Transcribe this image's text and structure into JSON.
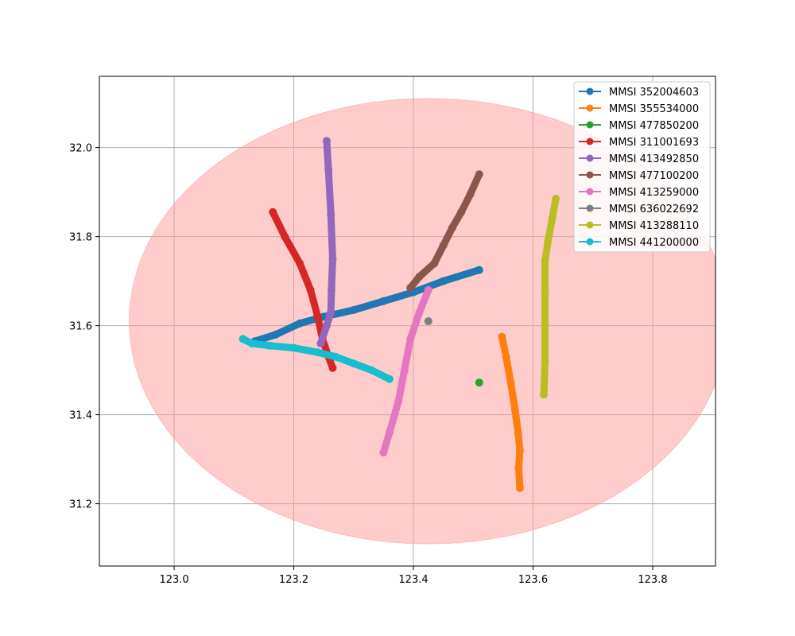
{
  "chart_data": {
    "type": "line",
    "title": "",
    "xlabel": "",
    "ylabel": "",
    "xlim": [
      122.875,
      123.905
    ],
    "ylim": [
      31.06,
      32.16
    ],
    "xticks": [
      "123.0",
      "123.2",
      "123.4",
      "123.6",
      "123.8"
    ],
    "xtick_values": [
      123.0,
      123.2,
      123.4,
      123.6,
      123.8
    ],
    "yticks": [
      "31.2",
      "31.4",
      "31.6",
      "31.8",
      "32.0"
    ],
    "ytick_values": [
      31.2,
      31.4,
      31.6,
      31.8,
      32.0
    ],
    "grid": true,
    "legend_position": "top-right",
    "region": {
      "type": "ellipse",
      "center": [
        123.425,
        31.61
      ],
      "radius_x": 0.5,
      "radius_y": 0.5,
      "color": "#ff9999"
    },
    "series": [
      {
        "name": "MMSI 352004603",
        "color": "#1f77b4",
        "x": [
          123.135,
          123.17,
          123.21,
          123.25,
          123.3,
          123.35,
          123.4,
          123.45,
          123.51
        ],
        "y": [
          31.565,
          31.58,
          31.605,
          31.62,
          31.635,
          31.655,
          31.675,
          31.7,
          31.725
        ]
      },
      {
        "name": "MMSI 355534000",
        "color": "#ff7f0e",
        "x": [
          123.548,
          123.555,
          123.563,
          123.57,
          123.575,
          123.578,
          123.576,
          123.578
        ],
        "y": [
          31.575,
          31.53,
          31.47,
          31.41,
          31.36,
          31.32,
          31.28,
          31.235
        ]
      },
      {
        "name": "MMSI 477850200",
        "color": "#2ca02c",
        "x": [
          123.51
        ],
        "y": [
          31.472
        ]
      },
      {
        "name": "MMSI 311001693",
        "color": "#d62728",
        "x": [
          123.165,
          123.185,
          123.21,
          123.228,
          123.24,
          123.248,
          123.258,
          123.265
        ],
        "y": [
          31.855,
          31.8,
          31.74,
          31.68,
          31.62,
          31.57,
          31.53,
          31.505
        ]
      },
      {
        "name": "MMSI 413492850",
        "color": "#9467bd",
        "x": [
          123.255,
          123.258,
          123.262,
          123.265,
          123.263,
          123.262,
          123.255,
          123.245
        ],
        "y": [
          32.015,
          31.95,
          31.85,
          31.75,
          31.68,
          31.63,
          31.6,
          31.56
        ]
      },
      {
        "name": "MMSI 477100200",
        "color": "#8c564b",
        "x": [
          123.395,
          123.41,
          123.435,
          123.45,
          123.465,
          123.48,
          123.495,
          123.51
        ],
        "y": [
          31.685,
          31.71,
          31.74,
          31.78,
          31.82,
          31.855,
          31.895,
          31.94
        ]
      },
      {
        "name": "MMSI 413259000",
        "color": "#e377c2",
        "x": [
          123.35,
          123.36,
          123.375,
          123.385,
          123.395,
          123.41,
          123.425
        ],
        "y": [
          31.315,
          31.36,
          31.43,
          31.5,
          31.57,
          31.63,
          31.68
        ]
      },
      {
        "name": "MMSI 636022692",
        "color": "#7f7f7f",
        "x": [
          123.425
        ],
        "y": [
          31.61
        ]
      },
      {
        "name": "MMSI 413288110",
        "color": "#bcbd22",
        "x": [
          123.618,
          123.62,
          123.62,
          123.62,
          123.62,
          123.625,
          123.632,
          123.638
        ],
        "y": [
          31.445,
          31.52,
          31.6,
          31.68,
          31.745,
          31.79,
          31.84,
          31.885
        ]
      },
      {
        "name": "MMSI 441200000",
        "color": "#17becf",
        "x": [
          123.115,
          123.13,
          123.16,
          123.2,
          123.24,
          123.27,
          123.3,
          123.33,
          123.36
        ],
        "y": [
          31.57,
          31.56,
          31.555,
          31.55,
          31.54,
          31.53,
          31.515,
          31.5,
          31.48
        ]
      }
    ]
  }
}
